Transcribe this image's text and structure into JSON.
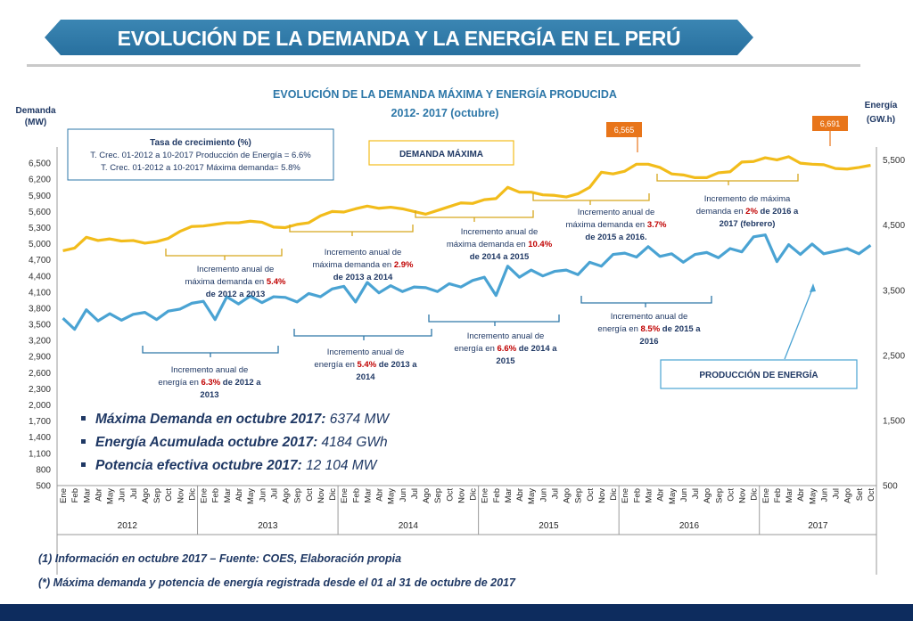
{
  "header": {
    "title": "EVOLUCIÓN DE LA DEMANDA Y LA ENERGÍA EN EL PERÚ"
  },
  "colors": {
    "demand": "#f2bc1b",
    "energy": "#4aa3d3",
    "brand": "#2d77a8",
    "navy": "#0d2c5e",
    "red": "#c00000",
    "badge": "#e8751a"
  },
  "chart_data": {
    "type": "line",
    "title": "EVOLUCIÓN DE LA DEMANDA MÁXIMA Y ENERGÍA PRODUCIDA",
    "subtitle": "2012- 2017 (octubre)",
    "ylabel_left": [
      "Demanda",
      "(MW)"
    ],
    "ylabel_right": [
      "Energía",
      "(GW.h)"
    ],
    "ylim_left": [
      500,
      6800
    ],
    "ylim_right": [
      500,
      5700
    ],
    "left_ticks": [
      "500",
      "800",
      "1,100",
      "1,400",
      "1,700",
      "2,000",
      "2,300",
      "2,600",
      "2,900",
      "3,200",
      "3,500",
      "3,800",
      "4,100",
      "4,400",
      "4,700",
      "5,000",
      "5,300",
      "5,600",
      "5,900",
      "6,200",
      "6,500"
    ],
    "right_ticks": [
      "500",
      "1,500",
      "2,500",
      "3,500",
      "4,500",
      "5,500"
    ],
    "months_per_year": [
      [
        "Ene",
        "Feb",
        "Mar",
        "Abr",
        "May",
        "Jun",
        "Jul",
        "Ago",
        "Sep",
        "Oct",
        "Nov",
        "Dic"
      ],
      [
        "Ene",
        "Feb",
        "Mar",
        "Abr",
        "May",
        "Jun",
        "Jul",
        "Ago",
        "Sep",
        "Oct",
        "Nov",
        "Dic"
      ],
      [
        "Ene",
        "Feb",
        "Mar",
        "Abr",
        "May",
        "Jun",
        "Jul",
        "Ago",
        "Sep",
        "Oct",
        "Nov",
        "Dic"
      ],
      [
        "Ene",
        "Feb",
        "Mar",
        "Abr",
        "May",
        "Jun",
        "Jul",
        "Ago",
        "Sep",
        "Oct",
        "Nov",
        "Dic"
      ],
      [
        "Ene",
        "Feb",
        "Mar",
        "Abr",
        "May",
        "Jun",
        "Jul",
        "Ago",
        "Sep",
        "Oct",
        "Nov",
        "Dic"
      ],
      [
        "Ene",
        "Feb",
        "Mar",
        "Abr",
        "May",
        "Jun",
        "Jul",
        "Ago",
        "Set",
        "Oct"
      ]
    ],
    "years": [
      "2012",
      "2013",
      "2014",
      "2015",
      "2016",
      "2017"
    ],
    "series": [
      {
        "name": "Demanda máxima (MW)",
        "axis": "left",
        "values": [
          4870,
          4920,
          5120,
          5060,
          5090,
          5050,
          5060,
          5010,
          5040,
          5100,
          5230,
          5320,
          5330,
          5360,
          5390,
          5390,
          5420,
          5400,
          5310,
          5300,
          5360,
          5390,
          5520,
          5600,
          5590,
          5650,
          5700,
          5660,
          5680,
          5650,
          5600,
          5550,
          5620,
          5690,
          5760,
          5750,
          5820,
          5840,
          6050,
          5960,
          5960,
          5910,
          5900,
          5870,
          5930,
          6050,
          6330,
          6300,
          6350,
          6480,
          6480,
          6420,
          6300,
          6280,
          6230,
          6230,
          6320,
          6340,
          6520,
          6530,
          6600,
          6560,
          6620,
          6500,
          6480,
          6470,
          6400,
          6390,
          6420,
          6460
        ]
      },
      {
        "name": "Producción de energía (GW.h)",
        "axis": "right",
        "values": [
          3070,
          2900,
          3200,
          3030,
          3140,
          3040,
          3130,
          3160,
          3050,
          3180,
          3210,
          3300,
          3330,
          3050,
          3400,
          3290,
          3410,
          3310,
          3400,
          3390,
          3320,
          3450,
          3400,
          3520,
          3560,
          3320,
          3620,
          3460,
          3570,
          3480,
          3550,
          3540,
          3480,
          3600,
          3550,
          3650,
          3700,
          3420,
          3870,
          3700,
          3810,
          3720,
          3790,
          3810,
          3740,
          3930,
          3870,
          4050,
          4070,
          4010,
          4170,
          4020,
          4060,
          3930,
          4050,
          4080,
          4000,
          4140,
          4090,
          4320,
          4350,
          3940,
          4200,
          4050,
          4210,
          4060,
          4100,
          4140,
          4060,
          4190
        ]
      }
    ],
    "peak_badges": [
      {
        "label": "6,565",
        "index": 53
      },
      {
        "label": "6,691",
        "index": 65
      }
    ]
  },
  "growth_box": {
    "title": "Tasa de crecimiento (%)",
    "line1": "T. Crec. 01-2012 a  10-2017 Producción de Energía =  6.6%",
    "line2": "T. Crec. 01-2012 a  10-2017 Máxima demanda=  5.8%"
  },
  "legend_boxes": {
    "demand": "DEMANDA  MÁXIMA",
    "energy": "PRODUCCIÓN DE ENERGÍA"
  },
  "annotations": {
    "d2012": {
      "l1": "Incremento anual de",
      "l2a": "máxima demanda en ",
      "pct": "5.4%",
      "l3": "de 2012 a 2013"
    },
    "d2013": {
      "l1": "Incremento anual de",
      "l2a": "máxima demanda en ",
      "pct": "2.9%",
      "l3": "de 2013 a 2014"
    },
    "d2014": {
      "l1": "Incremento anual de",
      "l2a": "máxima demanda en ",
      "pct": "10.4%",
      "l3": "de 2014 a 2015"
    },
    "d2015": {
      "l1": "Incremento anual de",
      "l2a": "máxima demanda en ",
      "pct": "3.7%",
      "l3": "de 2015 a 2016."
    },
    "d2016": {
      "l1": "Incremento de máxima",
      "l2a": "demanda en ",
      "pct": "2%",
      "l2b": " de 2016 a",
      "l3": "2017 (febrero)"
    },
    "e2012": {
      "l1": "Incremento anual de",
      "l2a": "energía en ",
      "pct": "6.3%",
      "l2b": " de 2012 a",
      "l3": "2013"
    },
    "e2013": {
      "l1": "Incremento anual de",
      "l2a": "energía en ",
      "pct": "5.4%",
      "l2b": " de 2013 a",
      "l3": "2014"
    },
    "e2014": {
      "l1": "Incremento anual de",
      "l2a": "energía en ",
      "pct": "6.6%",
      "l2b": " de 2014 a",
      "l3": "2015"
    },
    "e2015": {
      "l1": "Incremento anual de",
      "l2a": "energía en ",
      "pct": "8.5%",
      "l2b": " de 2015 a",
      "l3": "2016"
    }
  },
  "highlights": [
    {
      "label": "Máxima Demanda en octubre 2017:",
      "value": "6374 MW"
    },
    {
      "label": "Energía Acumulada octubre 2017:",
      "value": "4184 GWh"
    },
    {
      "label": "Potencia efectiva octubre 2017:",
      "value": "12 104 MW"
    }
  ],
  "footer": {
    "note1": "(1) Información en octubre 2017 – Fuente: COES, Elaboración propia",
    "note2": "(*) Máxima demanda y potencia de energía registrada desde el 01 al 31 de octubre de 2017"
  }
}
